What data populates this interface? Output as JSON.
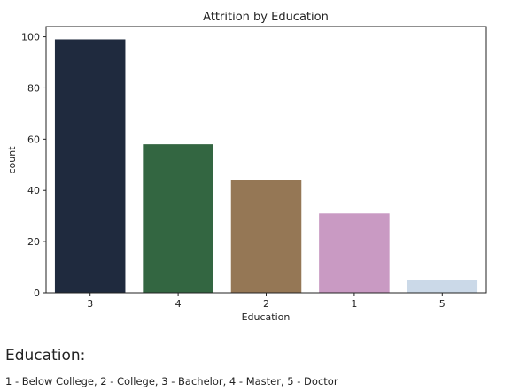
{
  "chart_data": {
    "type": "bar",
    "title": "Attrition by Education",
    "xlabel": "Education",
    "ylabel": "count",
    "categories": [
      "3",
      "4",
      "2",
      "1",
      "5"
    ],
    "values": [
      99,
      58,
      44,
      31,
      5
    ],
    "colors": [
      "#1f2a3e",
      "#336641",
      "#957755",
      "#c99ac3",
      "#cbd9e8"
    ],
    "yticks": [
      0,
      20,
      40,
      60,
      80,
      100
    ],
    "ylim": [
      0,
      104
    ],
    "grid": false
  },
  "caption": {
    "heading": "Education:",
    "note": "1 - Below College, 2 - College, 3 - Bachelor, 4 - Master, 5 - Doctor"
  }
}
